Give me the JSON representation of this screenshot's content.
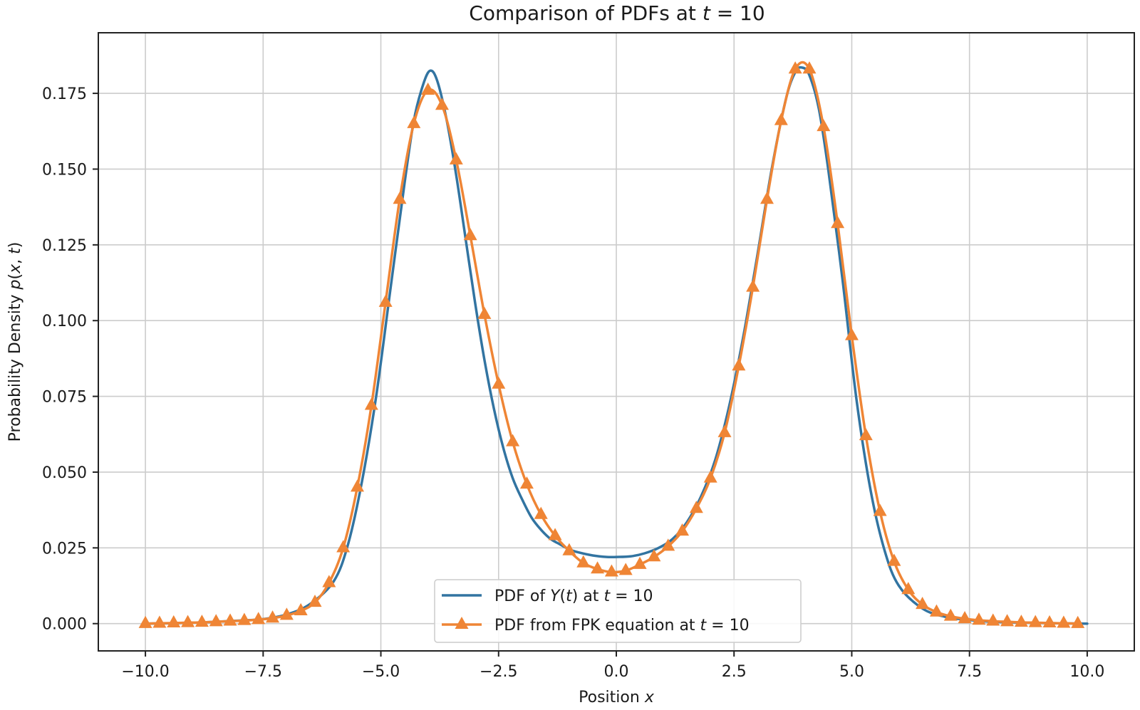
{
  "chart_data": {
    "type": "line",
    "title": "Comparison of PDFs at t = 10",
    "xlabel": "Position x",
    "ylabel": "Probability Density p(x, t)",
    "xlim": [
      -11.0,
      11.0
    ],
    "ylim": [
      -0.009,
      0.195
    ],
    "x_ticks": [
      -10.0,
      -7.5,
      -5.0,
      -2.5,
      0.0,
      2.5,
      5.0,
      7.5,
      10.0
    ],
    "x_tick_labels": [
      "−10.0",
      "−7.5",
      "−5.0",
      "−2.5",
      "0.0",
      "2.5",
      "5.0",
      "7.5",
      "10.0"
    ],
    "y_ticks": [
      0.0,
      0.025,
      0.05,
      0.075,
      0.1,
      0.125,
      0.15,
      0.175
    ],
    "y_tick_labels": [
      "0.000",
      "0.025",
      "0.050",
      "0.075",
      "0.100",
      "0.125",
      "0.150",
      "0.175"
    ],
    "grid": true,
    "legend_position": "bottom-center",
    "series": [
      {
        "name": "PDF of Y(t) at t = 10",
        "color": "#3274a1",
        "marker": "none",
        "x": [
          -10.0,
          -9.0,
          -8.0,
          -7.5,
          -7.0,
          -6.5,
          -6.0,
          -5.7,
          -5.4,
          -5.1,
          -4.8,
          -4.5,
          -4.3,
          -4.1,
          -3.95,
          -3.8,
          -3.6,
          -3.4,
          -3.2,
          -3.0,
          -2.8,
          -2.6,
          -2.4,
          -2.2,
          -2.0,
          -1.8,
          -1.6,
          -1.4,
          -1.2,
          -1.0,
          -0.8,
          -0.5,
          -0.2,
          0.0,
          0.3,
          0.6,
          0.9,
          1.2,
          1.5,
          1.8,
          2.1,
          2.4,
          2.7,
          3.0,
          3.3,
          3.6,
          3.8,
          3.95,
          4.1,
          4.3,
          4.5,
          4.8,
          5.1,
          5.4,
          5.7,
          6.0,
          6.5,
          7.0,
          7.5,
          8.0,
          9.0,
          10.0
        ],
        "y": [
          0.0,
          0.0003,
          0.001,
          0.0015,
          0.003,
          0.0065,
          0.014,
          0.026,
          0.047,
          0.075,
          0.11,
          0.145,
          0.166,
          0.178,
          0.1825,
          0.179,
          0.166,
          0.148,
          0.127,
          0.106,
          0.087,
          0.071,
          0.058,
          0.048,
          0.041,
          0.035,
          0.031,
          0.028,
          0.0262,
          0.0245,
          0.0235,
          0.0225,
          0.022,
          0.022,
          0.0222,
          0.0232,
          0.025,
          0.028,
          0.0335,
          0.042,
          0.054,
          0.072,
          0.095,
          0.122,
          0.15,
          0.173,
          0.182,
          0.1835,
          0.181,
          0.17,
          0.15,
          0.114,
          0.074,
          0.044,
          0.024,
          0.0125,
          0.005,
          0.0022,
          0.0012,
          0.0006,
          0.0002,
          0.0
        ]
      },
      {
        "name": "PDF from FPK equation at t = 10",
        "color": "#ef8535",
        "marker": "triangle",
        "x": [
          -10.0,
          -9.7,
          -9.4,
          -9.1,
          -8.8,
          -8.5,
          -8.2,
          -7.9,
          -7.6,
          -7.3,
          -7.0,
          -6.7,
          -6.4,
          -6.1,
          -5.8,
          -5.5,
          -5.2,
          -4.9,
          -4.6,
          -4.3,
          -4.0,
          -3.7,
          -3.4,
          -3.1,
          -2.8,
          -2.5,
          -2.2,
          -1.9,
          -1.6,
          -1.3,
          -1.0,
          -0.7,
          -0.4,
          -0.1,
          0.2,
          0.5,
          0.8,
          1.1,
          1.4,
          1.7,
          2.0,
          2.3,
          2.6,
          2.9,
          3.2,
          3.5,
          3.8,
          4.1,
          4.4,
          4.7,
          5.0,
          5.3,
          5.6,
          5.9,
          6.2,
          6.5,
          6.8,
          7.1,
          7.4,
          7.7,
          8.0,
          8.3,
          8.6,
          8.9,
          9.2,
          9.5,
          9.8
        ],
        "y": [
          0.0,
          0.0001,
          0.0002,
          0.0003,
          0.0004,
          0.0006,
          0.0008,
          0.001,
          0.0013,
          0.0018,
          0.0027,
          0.0042,
          0.007,
          0.0135,
          0.025,
          0.045,
          0.072,
          0.106,
          0.14,
          0.165,
          0.176,
          0.171,
          0.153,
          0.128,
          0.102,
          0.079,
          0.06,
          0.046,
          0.036,
          0.029,
          0.024,
          0.02,
          0.018,
          0.017,
          0.0175,
          0.0195,
          0.022,
          0.0255,
          0.0305,
          0.038,
          0.048,
          0.063,
          0.085,
          0.111,
          0.14,
          0.166,
          0.183,
          0.183,
          0.164,
          0.132,
          0.095,
          0.062,
          0.037,
          0.0205,
          0.0112,
          0.0063,
          0.0038,
          0.0024,
          0.0016,
          0.0011,
          0.0008,
          0.0006,
          0.0004,
          0.0003,
          0.0002,
          0.0001,
          0.0
        ]
      }
    ]
  }
}
